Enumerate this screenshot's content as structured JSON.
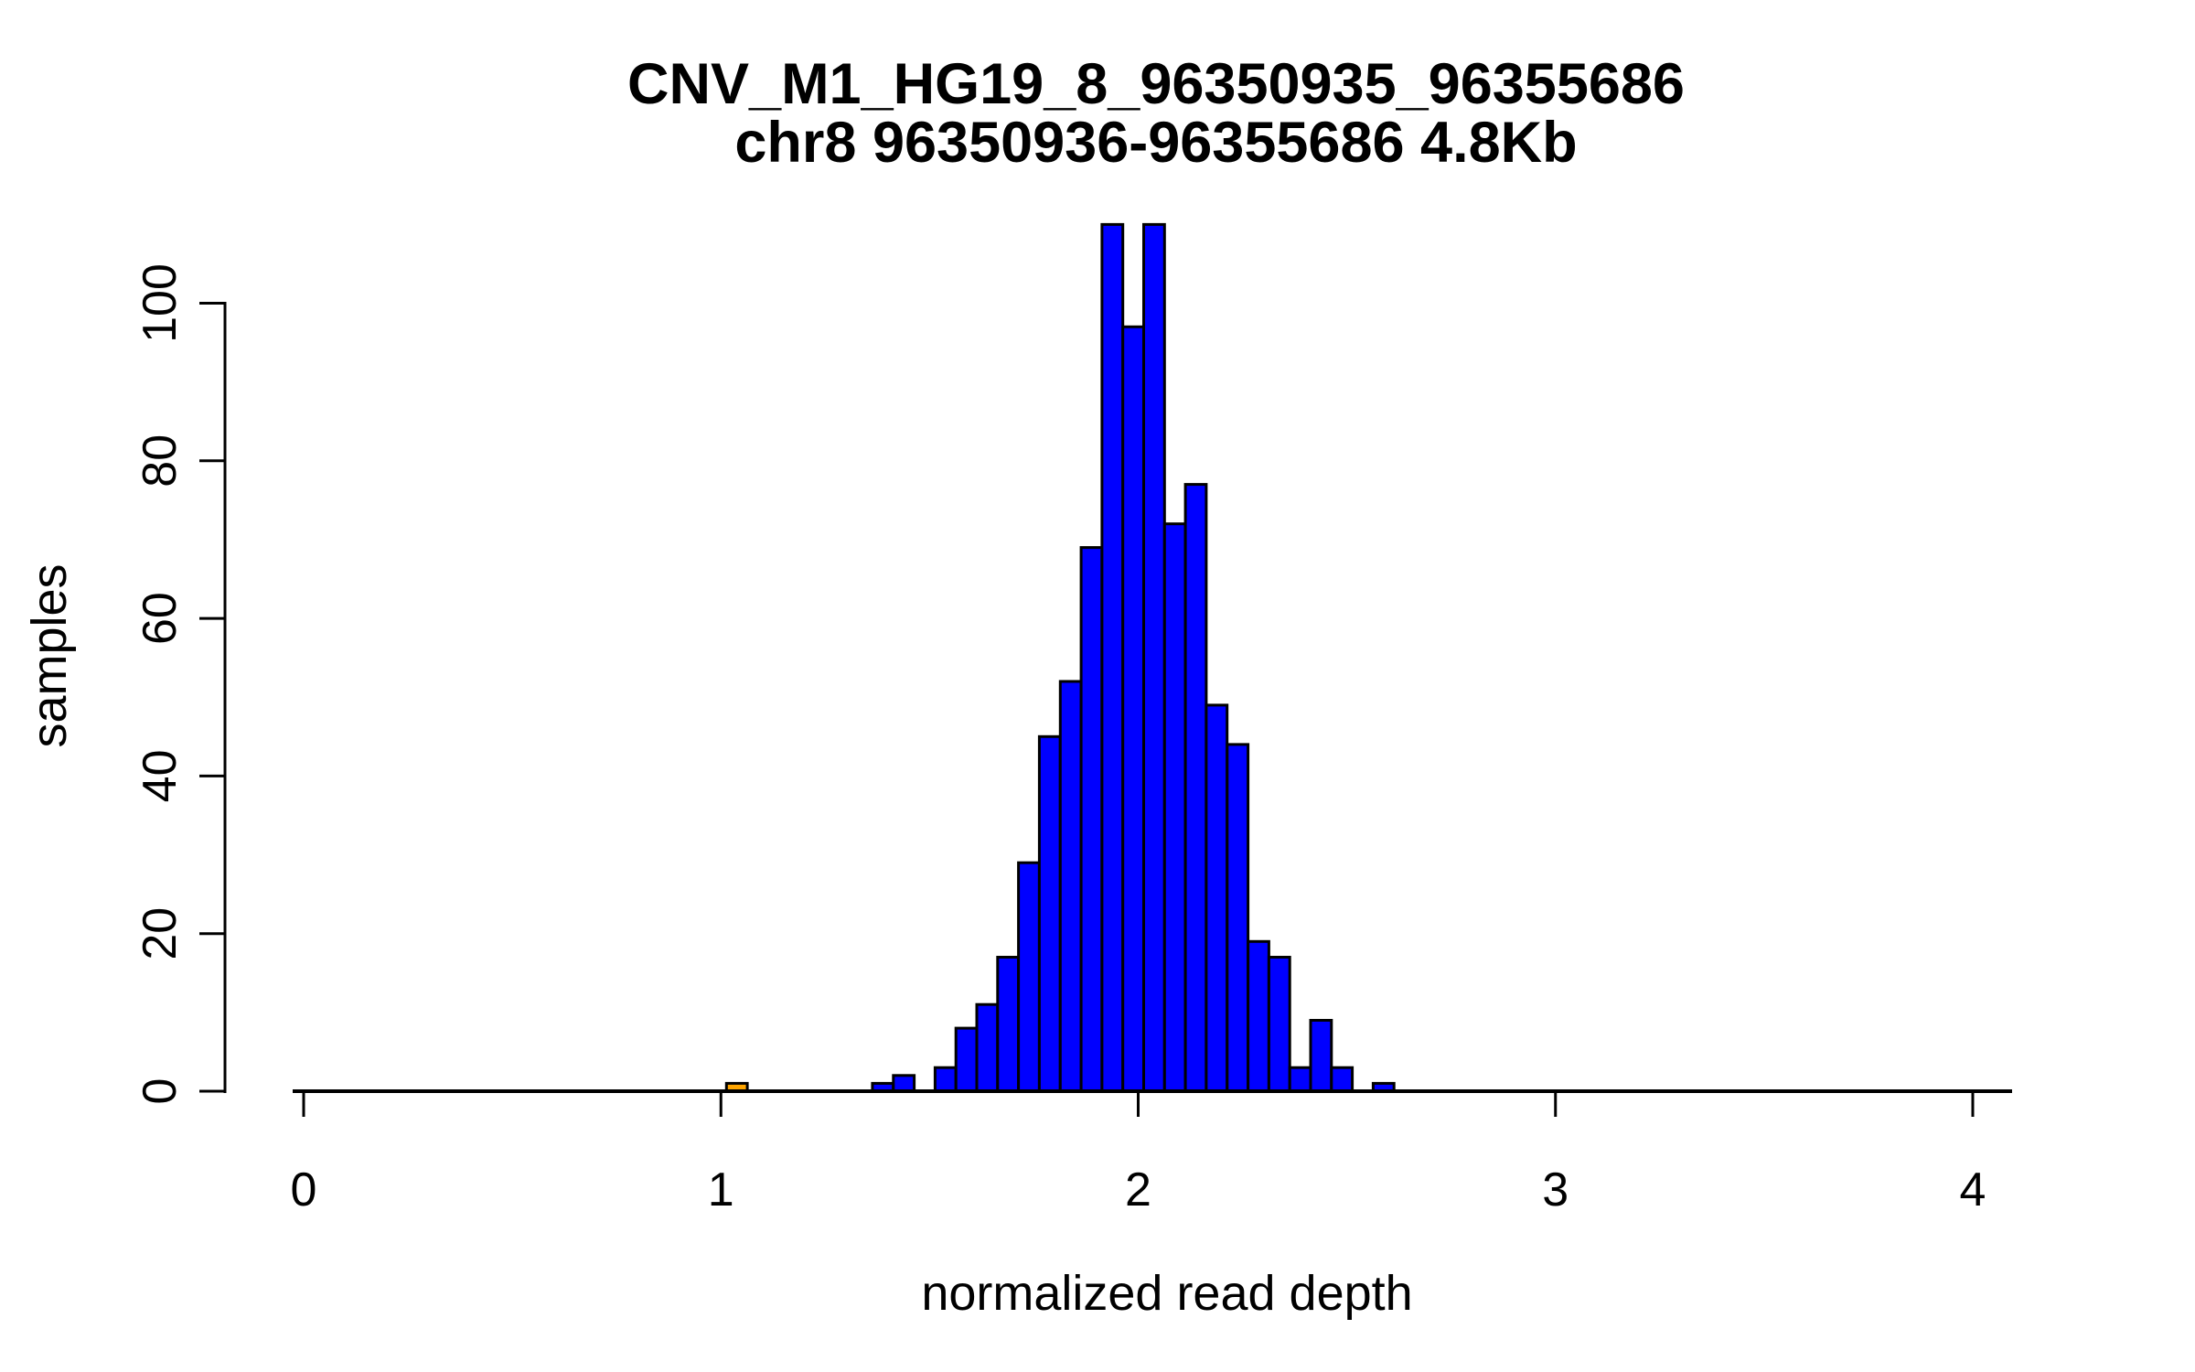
{
  "title": {
    "line1": "CNV_M1_HG19_8_96350935_96355686",
    "line2": "chr8 96350936-96355686 4.8Kb"
  },
  "chart_data": {
    "type": "bar",
    "subtype": "histogram",
    "title": "CNV_M1_HG19_8_96350935_96355686",
    "subtitle": "chr8 96350936-96355686 4.8Kb",
    "xlabel": "normalized read depth",
    "ylabel": "samples",
    "xlim": [
      0,
      4.1
    ],
    "ylim": [
      0,
      110
    ],
    "x_ticks": [
      0,
      1,
      2,
      3,
      4
    ],
    "y_ticks": [
      0,
      20,
      40,
      60,
      80,
      100
    ],
    "bin_width": 0.05,
    "grid": false,
    "legend": "none",
    "colors": {
      "bar_fill": "#0000FF",
      "highlight_fill": "#FFA500",
      "bar_stroke": "#000000",
      "axis": "#000000",
      "background": "#FFFFFF"
    },
    "bins": [
      {
        "start": 1.0,
        "end": 1.05,
        "count": 1,
        "color": "#FFA500"
      },
      {
        "start": 1.35,
        "end": 1.4,
        "count": 1
      },
      {
        "start": 1.4,
        "end": 1.45,
        "count": 2
      },
      {
        "start": 1.45,
        "end": 1.5,
        "count": 0
      },
      {
        "start": 1.5,
        "end": 1.55,
        "count": 3
      },
      {
        "start": 1.55,
        "end": 1.6,
        "count": 8
      },
      {
        "start": 1.6,
        "end": 1.65,
        "count": 11
      },
      {
        "start": 1.65,
        "end": 1.7,
        "count": 17
      },
      {
        "start": 1.7,
        "end": 1.75,
        "count": 29
      },
      {
        "start": 1.75,
        "end": 1.8,
        "count": 45
      },
      {
        "start": 1.8,
        "end": 1.85,
        "count": 52
      },
      {
        "start": 1.85,
        "end": 1.9,
        "count": 69
      },
      {
        "start": 1.9,
        "end": 1.95,
        "count": 110
      },
      {
        "start": 1.95,
        "end": 2.0,
        "count": 97
      },
      {
        "start": 2.0,
        "end": 2.05,
        "count": 110
      },
      {
        "start": 2.05,
        "end": 2.1,
        "count": 72
      },
      {
        "start": 2.1,
        "end": 2.15,
        "count": 77
      },
      {
        "start": 2.15,
        "end": 2.2,
        "count": 49
      },
      {
        "start": 2.2,
        "end": 2.25,
        "count": 44
      },
      {
        "start": 2.25,
        "end": 2.3,
        "count": 19
      },
      {
        "start": 2.3,
        "end": 2.35,
        "count": 17
      },
      {
        "start": 2.35,
        "end": 2.4,
        "count": 3
      },
      {
        "start": 2.4,
        "end": 2.45,
        "count": 9
      },
      {
        "start": 2.45,
        "end": 2.5,
        "count": 3
      },
      {
        "start": 2.5,
        "end": 2.55,
        "count": 0
      },
      {
        "start": 2.55,
        "end": 2.6,
        "count": 1
      }
    ]
  }
}
